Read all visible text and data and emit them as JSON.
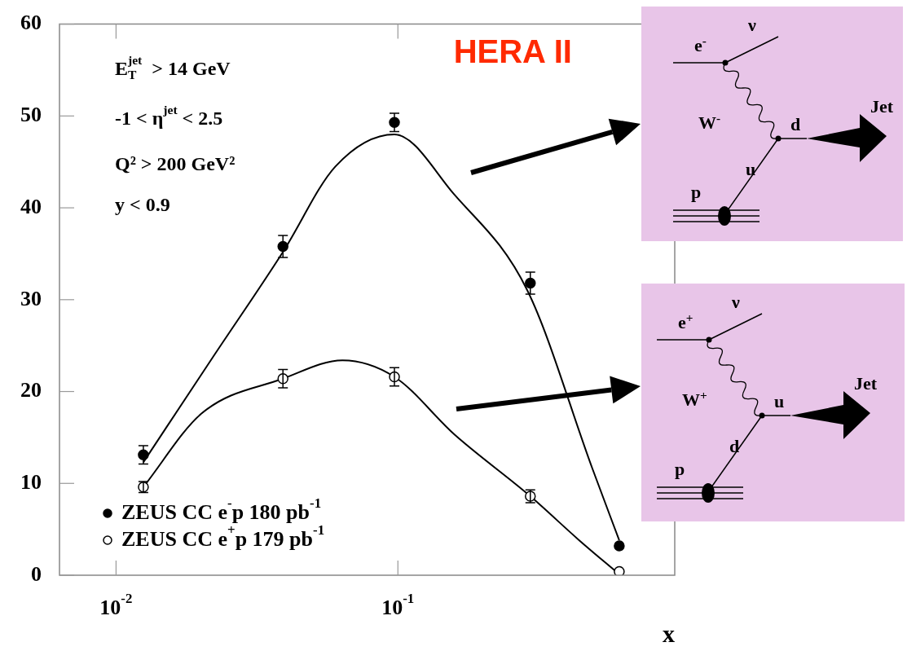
{
  "chart_data": {
    "type": "scatter",
    "xlabel": "x",
    "log": "x",
    "xlim": [
      0.0063,
      0.96
    ],
    "xticks": [
      {
        "value": 0.01,
        "label": "10$^{-2}$"
      },
      {
        "value": 0.1,
        "label": "10$^{-1}$"
      }
    ],
    "ylim": [
      0,
      60
    ],
    "yticks": [
      0,
      10,
      20,
      30,
      40,
      50,
      60
    ],
    "grid": false,
    "legend": "bottom left",
    "marker": "circle",
    "series": [
      {
        "name": "ZEUS CC e$^{-}$p 180 pb$^{-1}$",
        "color": "#000000",
        "x": [
          0.0125,
          0.0391,
          0.0972,
          0.295,
          0.61
        ],
        "values": [
          13.1,
          35.8,
          49.3,
          31.8,
          3.2
        ],
        "errors": [
          1.0,
          1.2,
          1.0,
          1.2,
          null
        ]
      },
      {
        "name": "ZEUS CC e$^{+}$p 179 pb$^{-1}$",
        "color": "#000000",
        "x": [
          0.0125,
          0.0391,
          0.0972,
          0.295,
          0.61
        ],
        "values": [
          9.6,
          21.4,
          21.6,
          8.6,
          0.4
        ],
        "errors": [
          0.6,
          1.0,
          1.0,
          0.7,
          null
        ]
      },
      {
        "type": "line",
        "color": "#000000",
        "marker": "none",
        "x": [
          0.0125,
          0.0219,
          0.0391,
          0.06,
          0.0972,
          0.158,
          0.288,
          0.49,
          0.61
        ],
        "values": [
          12.3,
          23.6,
          35.2,
          44.5,
          48.0,
          41.5,
          31.0,
          11.6,
          3.8
        ]
      },
      {
        "type": "line",
        "color": "#000000",
        "marker": "none",
        "x": [
          0.0125,
          0.0201,
          0.0391,
          0.0636,
          0.0972,
          0.159,
          0.295,
          0.44,
          0.61
        ],
        "values": [
          9.6,
          17.6,
          21.4,
          23.4,
          21.6,
          15.3,
          8.6,
          3.8,
          0.1
        ]
      }
    ],
    "annotations": [
      "E$^{jet}$$_{T}$  > 14 GeV",
      "-1 < η$^{jet}$ < 2.5",
      "Q² > 200 GeV²",
      "y < 0.9",
      "HERA II",
      "e$^{-}$",
      "ν",
      "W$^{-}$",
      "d",
      "Jet",
      "u",
      "p",
      "e$^{+}$",
      "ν",
      "W$^{+}$",
      "u",
      "Jet",
      "d",
      "p"
    ]
  }
}
